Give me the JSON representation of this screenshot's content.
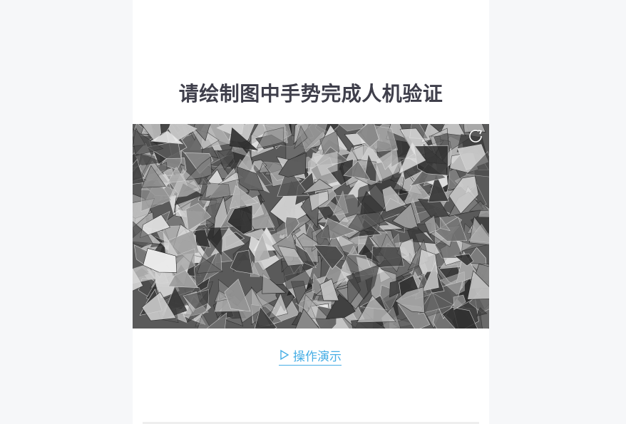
{
  "page": {
    "title": "请绘制图中手势完成人机验证",
    "demo_link_label": "操作演示"
  },
  "icons": {
    "refresh": "refresh-icon",
    "play": "play-triangle-icon"
  },
  "colors": {
    "title": "#3f3f4b",
    "link": "#47aee5",
    "page_background": "#f6f7f9",
    "panel_background": "#ffffff"
  }
}
